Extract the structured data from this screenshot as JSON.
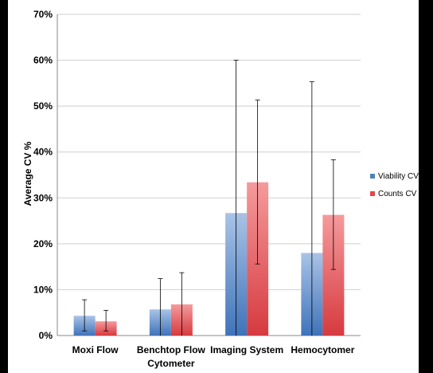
{
  "chart_data": {
    "type": "bar",
    "categories": [
      "Moxi Flow",
      "Benchtop Flow Cytometer",
      "Imaging System",
      "Hemocytomer"
    ],
    "category_lines": [
      [
        "Moxi Flow"
      ],
      [
        "Benchtop Flow",
        "Cytometer"
      ],
      [
        "Imaging System"
      ],
      [
        "Hemocytomer"
      ]
    ],
    "series": [
      {
        "name": "Viability CV %",
        "color": "#4f81bd",
        "values": [
          4.3,
          5.7,
          26.7,
          18.0
        ],
        "error_low": [
          1.0,
          0.0,
          0.0,
          0.0
        ],
        "error_high": [
          7.8,
          12.4,
          60.0,
          55.3
        ]
      },
      {
        "name": "Counts CV %",
        "color": "#e0464b",
        "values": [
          3.1,
          6.8,
          33.4,
          26.3
        ],
        "error_low": [
          1.0,
          0.0,
          15.6,
          14.4
        ],
        "error_high": [
          5.5,
          13.7,
          51.3,
          38.3
        ]
      }
    ],
    "ylabel": "Average CV %",
    "ylim": [
      0,
      70
    ],
    "yticks": [
      "0%",
      "10%",
      "20%",
      "30%",
      "40%",
      "50%",
      "60%",
      "70%"
    ],
    "grid": true,
    "legend": "right"
  }
}
